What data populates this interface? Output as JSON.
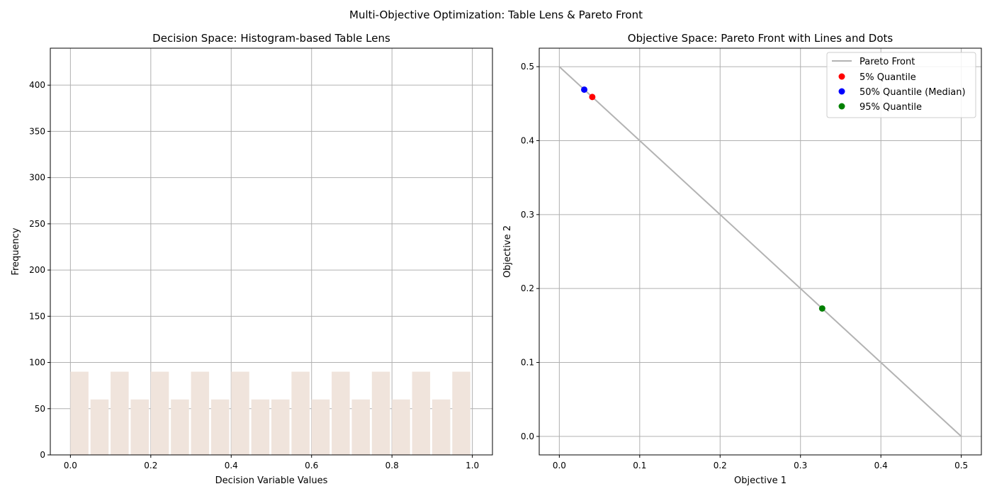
{
  "figure": {
    "suptitle": "Multi-Objective Optimization: Table Lens & Pareto Front"
  },
  "chart_data": [
    {
      "type": "bar",
      "title": "Decision Space: Histogram-based Table Lens",
      "xlabel": "Decision Variable Values",
      "ylabel": "Frequency",
      "xlim": [
        -0.05,
        1.05
      ],
      "ylim": [
        0,
        440
      ],
      "xticks": [
        0.0,
        0.2,
        0.4,
        0.6,
        0.8,
        1.0
      ],
      "xtick_labels": [
        "0.0",
        "0.2",
        "0.4",
        "0.6",
        "0.8",
        "1.0"
      ],
      "yticks": [
        0,
        50,
        100,
        150,
        200,
        250,
        300,
        350,
        400
      ],
      "ytick_labels": [
        "0",
        "50",
        "100",
        "150",
        "200",
        "250",
        "300",
        "350",
        "400"
      ],
      "bin_edges": [
        0.0,
        0.05,
        0.1,
        0.15,
        0.2,
        0.25,
        0.3,
        0.35,
        0.4,
        0.45,
        0.5,
        0.55,
        0.6,
        0.65,
        0.7,
        0.75,
        0.8,
        0.85,
        0.9,
        0.95,
        1.0
      ],
      "values": [
        90,
        60,
        90,
        60,
        90,
        60,
        90,
        60,
        90,
        60,
        60,
        90,
        60,
        90,
        60,
        90,
        60,
        90,
        60,
        90
      ],
      "bar_width_fraction": 0.9,
      "bar_color": "#f0e4dc",
      "grid": true
    },
    {
      "type": "line",
      "title": "Objective Space: Pareto Front with Lines and Dots",
      "xlabel": "Objective 1",
      "ylabel": "Objective 2",
      "xlim": [
        -0.025,
        0.525
      ],
      "ylim": [
        -0.025,
        0.525
      ],
      "xticks": [
        0.0,
        0.1,
        0.2,
        0.3,
        0.4,
        0.5
      ],
      "xtick_labels": [
        "0.0",
        "0.1",
        "0.2",
        "0.3",
        "0.4",
        "0.5"
      ],
      "yticks": [
        0.0,
        0.1,
        0.2,
        0.3,
        0.4,
        0.5
      ],
      "ytick_labels": [
        "0.0",
        "0.1",
        "0.2",
        "0.3",
        "0.4",
        "0.5"
      ],
      "grid": true,
      "legend_position": "top-right",
      "series": [
        {
          "name": "Pareto Front",
          "kind": "line",
          "color": "#b3b3b3",
          "x": [
            0.0,
            0.5
          ],
          "y": [
            0.5,
            0.0
          ]
        },
        {
          "name": "5% Quantile",
          "kind": "scatter",
          "color": "#ff0000",
          "x": [
            0.041
          ],
          "y": [
            0.459
          ]
        },
        {
          "name": "50% Quantile (Median)",
          "kind": "scatter",
          "color": "#0000ff",
          "x": [
            0.031
          ],
          "y": [
            0.469
          ]
        },
        {
          "name": "95% Quantile",
          "kind": "scatter",
          "color": "#008000",
          "x": [
            0.327
          ],
          "y": [
            0.173
          ]
        }
      ]
    }
  ]
}
